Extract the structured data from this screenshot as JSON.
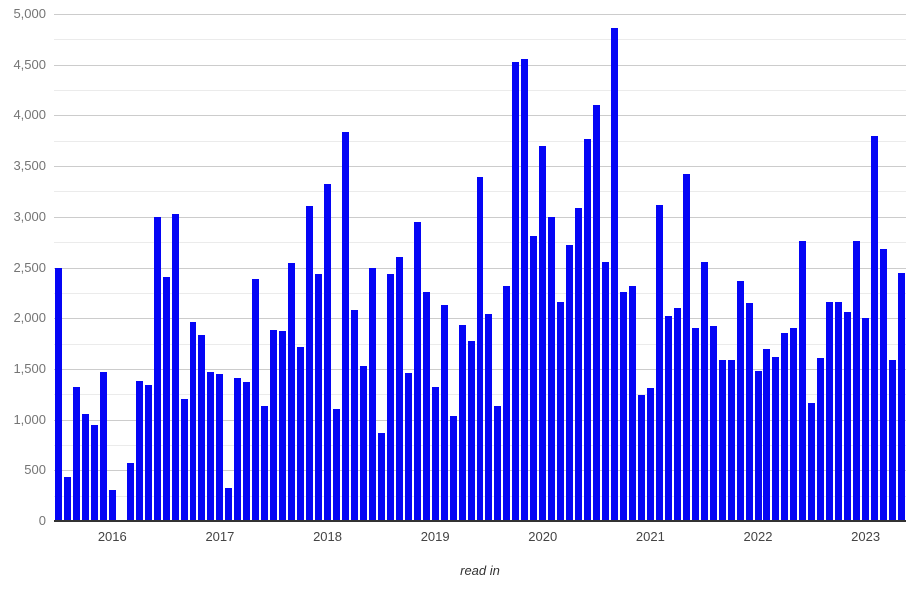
{
  "chart_data": {
    "type": "bar",
    "title": "",
    "xlabel": "read in",
    "ylabel": "",
    "legend": "none",
    "grid": "on",
    "bar_color": "#0505f5",
    "ylim": [
      0,
      5000
    ],
    "y_major_step": 500,
    "y_minor_step": 250,
    "y_tick_labels": [
      "0",
      "500",
      "1,000",
      "1,500",
      "2,000",
      "2,500",
      "3,000",
      "3,500",
      "4,000",
      "4,500",
      "5,000"
    ],
    "x_year_ticks": [
      {
        "label": "2016",
        "month_index": 6
      },
      {
        "label": "2017",
        "month_index": 18
      },
      {
        "label": "2018",
        "month_index": 30
      },
      {
        "label": "2019",
        "month_index": 42
      },
      {
        "label": "2020",
        "month_index": 54
      },
      {
        "label": "2021",
        "month_index": 66
      },
      {
        "label": "2022",
        "month_index": 78
      },
      {
        "label": "2023",
        "month_index": 90
      }
    ],
    "categories": [
      "Jul 2015",
      "Aug 2015",
      "Sep 2015",
      "Oct 2015",
      "Nov 2015",
      "Dec 2015",
      "Jan 2016",
      "Feb 2016",
      "Mar 2016",
      "Apr 2016",
      "May 2016",
      "Jun 2016",
      "Jul 2016",
      "Aug 2016",
      "Sep 2016",
      "Oct 2016",
      "Nov 2016",
      "Dec 2016",
      "Jan 2017",
      "Feb 2017",
      "Mar 2017",
      "Apr 2017",
      "May 2017",
      "Jun 2017",
      "Jul 2017",
      "Aug 2017",
      "Sep 2017",
      "Oct 2017",
      "Nov 2017",
      "Dec 2017",
      "Jan 2018",
      "Feb 2018",
      "Mar 2018",
      "Apr 2018",
      "May 2018",
      "Jun 2018",
      "Jul 2018",
      "Aug 2018",
      "Sep 2018",
      "Oct 2018",
      "Nov 2018",
      "Dec 2018",
      "Jan 2019",
      "Feb 2019",
      "Mar 2019",
      "Apr 2019",
      "May 2019",
      "Jun 2019",
      "Jul 2019",
      "Aug 2019",
      "Sep 2019",
      "Oct 2019",
      "Nov 2019",
      "Dec 2019",
      "Jan 2020",
      "Feb 2020",
      "Mar 2020",
      "Apr 2020",
      "May 2020",
      "Jun 2020",
      "Jul 2020",
      "Aug 2020",
      "Sep 2020",
      "Oct 2020",
      "Nov 2020",
      "Dec 2020",
      "Jan 2021",
      "Feb 2021",
      "Mar 2021",
      "Apr 2021",
      "May 2021",
      "Jun 2021",
      "Jul 2021",
      "Aug 2021",
      "Sep 2021",
      "Oct 2021",
      "Nov 2021",
      "Dec 2021",
      "Jan 2022",
      "Feb 2022",
      "Mar 2022",
      "Apr 2022",
      "May 2022",
      "Jun 2022",
      "Jul 2022",
      "Aug 2022",
      "Sep 2022",
      "Oct 2022",
      "Nov 2022",
      "Dec 2022",
      "Jan 2023",
      "Feb 2023",
      "Mar 2023",
      "Apr 2023",
      "May 2023"
    ],
    "values": [
      2500,
      430,
      1320,
      1060,
      950,
      1470,
      310,
      0,
      570,
      1380,
      1340,
      3000,
      2410,
      3030,
      1200,
      1960,
      1830,
      1470,
      1450,
      330,
      1410,
      1370,
      2390,
      1130,
      1880,
      1870,
      2540,
      1720,
      3110,
      2440,
      3320,
      1100,
      3840,
      2080,
      1530,
      2500,
      870,
      2440,
      2600,
      1460,
      2950,
      2260,
      1320,
      2130,
      1040,
      1930,
      1780,
      3390,
      2040,
      1130,
      2320,
      4530,
      4560,
      2810,
      3700,
      3000,
      2160,
      2720,
      3090,
      3770,
      4100,
      2550,
      4860,
      2260,
      2320,
      1240,
      1310,
      3120,
      2020,
      2100,
      3420,
      1900,
      2550,
      1920,
      1590,
      1590,
      2370,
      2150,
      1480,
      1700,
      1620,
      1850,
      1900,
      2760,
      1160,
      1610,
      2160,
      2160,
      2060,
      2760,
      2000,
      3800,
      2680,
      1590,
      2450
    ]
  }
}
